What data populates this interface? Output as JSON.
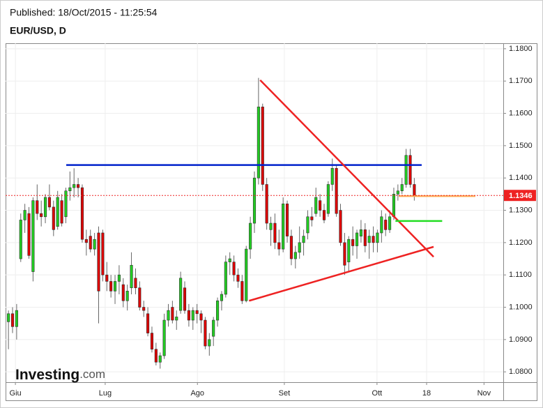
{
  "header": {
    "published": "Published: 18/Oct/2015 - 11:25:54",
    "symbol": "EUR/USD, D"
  },
  "logo": {
    "brand": "Investing",
    "suffix": ".com"
  },
  "chart_data": {
    "type": "candlestick",
    "up_color": "#22cc22",
    "down_color": "#dd0000",
    "grid": true,
    "ylim": [
      1.0768,
      1.1817
    ],
    "yticks": [
      {
        "value": 1.08,
        "label": "1.0800"
      },
      {
        "value": 1.09,
        "label": "1.0900"
      },
      {
        "value": 1.1,
        "label": "1.1000"
      },
      {
        "value": 1.11,
        "label": "1.1100"
      },
      {
        "value": 1.12,
        "label": "1.1200"
      },
      {
        "value": 1.13,
        "label": "1.1300"
      },
      {
        "value": 1.14,
        "label": "1.1400"
      },
      {
        "value": 1.15,
        "label": "1.1500"
      },
      {
        "value": 1.16,
        "label": "1.1600"
      },
      {
        "value": 1.17,
        "label": "1.1700"
      },
      {
        "value": 1.18,
        "label": "1.1800"
      }
    ],
    "xlim": [
      -0.7,
      120.7
    ],
    "xticks": [
      {
        "value": 1.7,
        "label": "Giu"
      },
      {
        "value": 23.6,
        "label": "Lug"
      },
      {
        "value": 46.1,
        "label": "Ago"
      },
      {
        "value": 67.3,
        "label": "Set"
      },
      {
        "value": 89.9,
        "label": "Ott"
      },
      {
        "value": 102.0,
        "label": "18"
      },
      {
        "value": 116.0,
        "label": "Nov"
      }
    ],
    "last_price": 1.1346,
    "last_price_color": "#ee2222",
    "candles": [
      [
        1.0955,
        1.099,
        1.087,
        1.098
      ],
      [
        1.098,
        1.1,
        1.092,
        1.094
      ],
      [
        1.094,
        1.101,
        1.09,
        1.099
      ],
      [
        1.115,
        1.129,
        1.114,
        1.127
      ],
      [
        1.127,
        1.132,
        1.123,
        1.13
      ],
      [
        1.129,
        1.131,
        1.115,
        1.116
      ],
      [
        1.111,
        1.134,
        1.108,
        1.133
      ],
      [
        1.133,
        1.138,
        1.127,
        1.129
      ],
      [
        1.129,
        1.133,
        1.125,
        1.128
      ],
      [
        1.128,
        1.135,
        1.126,
        1.134
      ],
      [
        1.134,
        1.138,
        1.13,
        1.131
      ],
      [
        1.131,
        1.133,
        1.122,
        1.124
      ],
      [
        1.125,
        1.136,
        1.124,
        1.134
      ],
      [
        1.133,
        1.135,
        1.125,
        1.126
      ],
      [
        1.128,
        1.137,
        1.126,
        1.136
      ],
      [
        1.136,
        1.142,
        1.133,
        1.137
      ],
      [
        1.137,
        1.143,
        1.134,
        1.138
      ],
      [
        1.138,
        1.14,
        1.134,
        1.137
      ],
      [
        1.137,
        1.138,
        1.12,
        1.121
      ],
      [
        1.121,
        1.124,
        1.116,
        1.12
      ],
      [
        1.122,
        1.124,
        1.117,
        1.118
      ],
      [
        1.118,
        1.123,
        1.116,
        1.121
      ],
      [
        1.123,
        1.125,
        1.095,
        1.105
      ],
      [
        1.123,
        1.124,
        1.108,
        1.11
      ],
      [
        1.11,
        1.114,
        1.105,
        1.108
      ],
      [
        1.108,
        1.11,
        1.103,
        1.105
      ],
      [
        1.105,
        1.11,
        1.101,
        1.108
      ],
      [
        1.108,
        1.113,
        1.104,
        1.11
      ],
      [
        1.107,
        1.109,
        1.1,
        1.102
      ],
      [
        1.102,
        1.107,
        1.099,
        1.105
      ],
      [
        1.106,
        1.117,
        1.104,
        1.113
      ],
      [
        1.109,
        1.112,
        1.104,
        1.106
      ],
      [
        1.106,
        1.108,
        1.099,
        1.1
      ],
      [
        1.1,
        1.102,
        1.097,
        1.099
      ],
      [
        1.098,
        1.1,
        1.091,
        1.092
      ],
      [
        1.092,
        1.094,
        1.086,
        1.087
      ],
      [
        1.087,
        1.089,
        1.082,
        1.083
      ],
      [
        1.083,
        1.086,
        1.081,
        1.085
      ],
      [
        1.085,
        1.098,
        1.084,
        1.096
      ],
      [
        1.096,
        1.101,
        1.094,
        1.099
      ],
      [
        1.1,
        1.102,
        1.095,
        1.096
      ],
      [
        1.096,
        1.099,
        1.093,
        1.097
      ],
      [
        1.099,
        1.111,
        1.098,
        1.109
      ],
      [
        1.106,
        1.108,
        1.098,
        1.099
      ],
      [
        1.099,
        1.101,
        1.094,
        1.096
      ],
      [
        1.096,
        1.1,
        1.093,
        1.099
      ],
      [
        1.099,
        1.101,
        1.095,
        1.098
      ],
      [
        1.098,
        1.099,
        1.092,
        1.096
      ],
      [
        1.096,
        1.097,
        1.087,
        1.088
      ],
      [
        1.088,
        1.092,
        1.085,
        1.09
      ],
      [
        1.091,
        1.097,
        1.088,
        1.096
      ],
      [
        1.096,
        1.103,
        1.094,
        1.102
      ],
      [
        1.102,
        1.105,
        1.099,
        1.104
      ],
      [
        1.104,
        1.116,
        1.103,
        1.114
      ],
      [
        1.114,
        1.117,
        1.11,
        1.115
      ],
      [
        1.114,
        1.116,
        1.108,
        1.11
      ],
      [
        1.11,
        1.112,
        1.106,
        1.108
      ],
      [
        1.108,
        1.11,
        1.101,
        1.102
      ],
      [
        1.102,
        1.119,
        1.1015,
        1.118
      ],
      [
        1.118,
        1.128,
        1.115,
        1.126
      ],
      [
        1.126,
        1.142,
        1.123,
        1.14
      ],
      [
        1.14,
        1.171,
        1.138,
        1.162
      ],
      [
        1.162,
        1.163,
        1.136,
        1.138
      ],
      [
        1.138,
        1.14,
        1.124,
        1.126
      ],
      [
        1.124,
        1.128,
        1.119,
        1.126
      ],
      [
        1.126,
        1.129,
        1.118,
        1.12
      ],
      [
        1.12,
        1.124,
        1.116,
        1.118
      ],
      [
        1.118,
        1.134,
        1.117,
        1.132
      ],
      [
        1.132,
        1.133,
        1.12,
        1.122
      ],
      [
        1.122,
        1.124,
        1.113,
        1.115
      ],
      [
        1.115,
        1.119,
        1.112,
        1.117
      ],
      [
        1.117,
        1.125,
        1.115,
        1.12
      ],
      [
        1.12,
        1.124,
        1.116,
        1.122
      ],
      [
        1.123,
        1.13,
        1.121,
        1.128
      ],
      [
        1.128,
        1.131,
        1.125,
        1.127
      ],
      [
        1.129,
        1.137,
        1.128,
        1.134
      ],
      [
        1.133,
        1.135,
        1.128,
        1.13
      ],
      [
        1.13,
        1.132,
        1.126,
        1.127
      ],
      [
        1.129,
        1.139,
        1.128,
        1.138
      ],
      [
        1.138,
        1.146,
        1.136,
        1.143
      ],
      [
        1.143,
        1.144,
        1.128,
        1.129
      ],
      [
        1.13,
        1.132,
        1.119,
        1.12
      ],
      [
        1.12,
        1.123,
        1.11,
        1.113
      ],
      [
        1.114,
        1.122,
        1.111,
        1.121
      ],
      [
        1.121,
        1.125,
        1.116,
        1.119
      ],
      [
        1.119,
        1.124,
        1.115,
        1.123
      ],
      [
        1.122,
        1.127,
        1.12,
        1.124
      ],
      [
        1.124,
        1.126,
        1.117,
        1.119
      ],
      [
        1.12,
        1.124,
        1.115,
        1.122
      ],
      [
        1.122,
        1.125,
        1.117,
        1.12
      ],
      [
        1.12,
        1.124,
        1.117,
        1.123
      ],
      [
        1.123,
        1.13,
        1.12,
        1.128
      ],
      [
        1.127,
        1.129,
        1.122,
        1.124
      ],
      [
        1.124,
        1.13,
        1.123,
        1.128
      ],
      [
        1.128,
        1.137,
        1.127,
        1.135
      ],
      [
        1.135,
        1.138,
        1.133,
        1.136
      ],
      [
        1.136,
        1.14,
        1.135,
        1.138
      ],
      [
        1.138,
        1.149,
        1.137,
        1.147
      ],
      [
        1.147,
        1.149,
        1.137,
        1.138
      ],
      [
        1.138,
        1.14,
        1.133,
        1.1346
      ]
    ],
    "trend_lines": [
      {
        "color": "#0022cc",
        "x": [
          14.1,
          100.8
        ],
        "y": [
          1.144,
          1.144
        ]
      },
      {
        "color": "#ee2222",
        "x": [
          61.4,
          103.7
        ],
        "y": [
          1.1703,
          1.1156
        ]
      },
      {
        "color": "#ee2222",
        "x": [
          58.7,
          103.7
        ],
        "y": [
          1.102,
          1.1187
        ]
      },
      {
        "color": "#22dd22",
        "x": [
          94.4,
          105.8
        ],
        "y": [
          1.1267,
          1.1267
        ]
      },
      {
        "color": "#ffaa55",
        "x": [
          95.2,
          113.9
        ],
        "y": [
          1.1344,
          1.1344
        ]
      }
    ]
  }
}
